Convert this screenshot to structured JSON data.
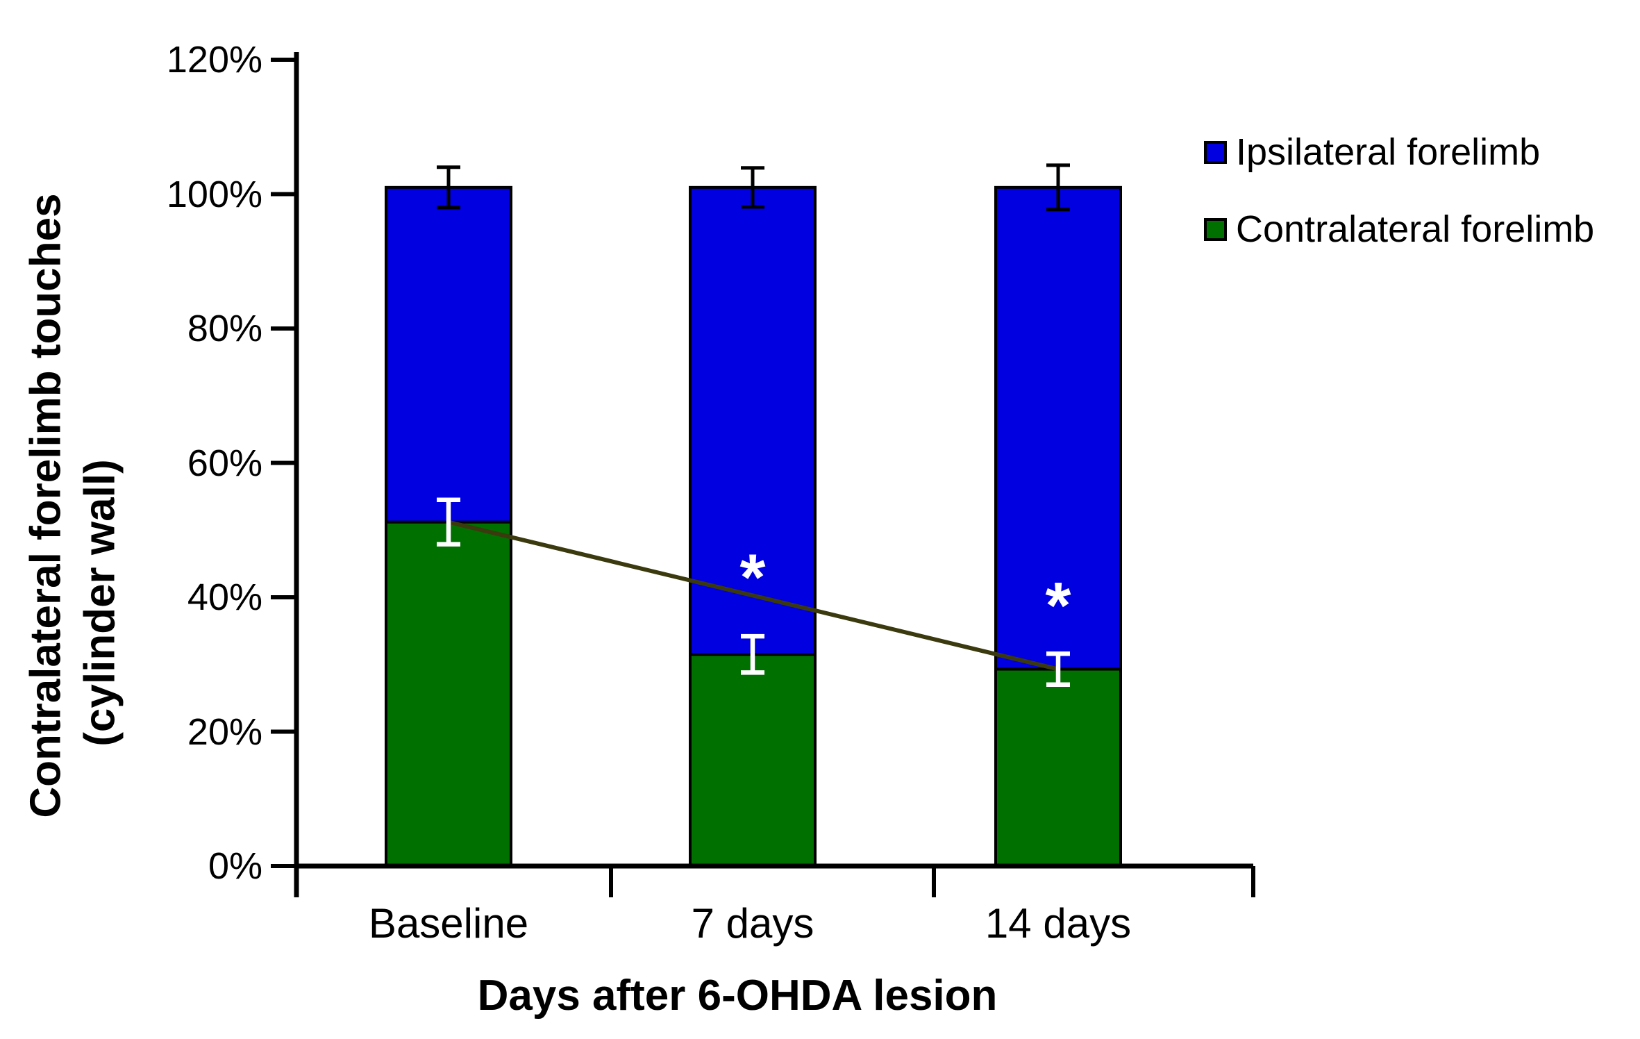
{
  "figure": {
    "y_axis_title_line1": "Contralateral forelimb touches",
    "y_axis_title_line2": "(cylinder wall)",
    "x_axis_title": "Days after 6-OHDA lesion"
  },
  "legend": {
    "items": [
      {
        "label": "Ipsilateral forelimb",
        "color": "#0000e0"
      },
      {
        "label": "Contralateral forelimb",
        "color": "#007000"
      }
    ]
  },
  "chart_data": {
    "type": "bar",
    "stacked": true,
    "title": "",
    "xlabel": "Days after 6-OHDA lesion",
    "ylabel": "Contralateral forelimb touches (cylinder wall)",
    "categories": [
      "Baseline",
      "7 days",
      "14 days"
    ],
    "series": [
      {
        "name": "Contralateral forelimb",
        "color": "#007000",
        "values": [
          51.2,
          31.5,
          29.3
        ],
        "error": [
          3.3,
          2.7,
          2.3
        ],
        "error_color": "#ffffff"
      },
      {
        "name": "Ipsilateral forelimb",
        "color": "#0000e0",
        "values": [
          49.8,
          69.5,
          71.7
        ],
        "error": [
          3.0,
          2.9,
          3.3
        ],
        "error_color": "#000000"
      }
    ],
    "stack_totals": [
      101,
      101,
      101
    ],
    "total_error": [
      3.0,
      2.9,
      3.3
    ],
    "y_ticks": [
      "0%",
      "20%",
      "40%",
      "60%",
      "80%",
      "100%",
      "120%"
    ],
    "y_tick_values": [
      0,
      20,
      40,
      60,
      80,
      100,
      120
    ],
    "ylim": [
      0,
      120
    ],
    "grid": false,
    "legend_position": "top-right",
    "axis_color": "#000000",
    "annotations": [
      {
        "text": "*",
        "category_index": 1,
        "pct": 44.6,
        "color": "#ffffff"
      },
      {
        "text": "*",
        "category_index": 2,
        "pct": 40.4,
        "color": "#ffffff"
      }
    ],
    "trend_line": {
      "from_category_index": 0,
      "from_pct": 51.2,
      "to_category_index": 2,
      "to_pct": 29.3,
      "color": "#3b3a0e"
    }
  }
}
